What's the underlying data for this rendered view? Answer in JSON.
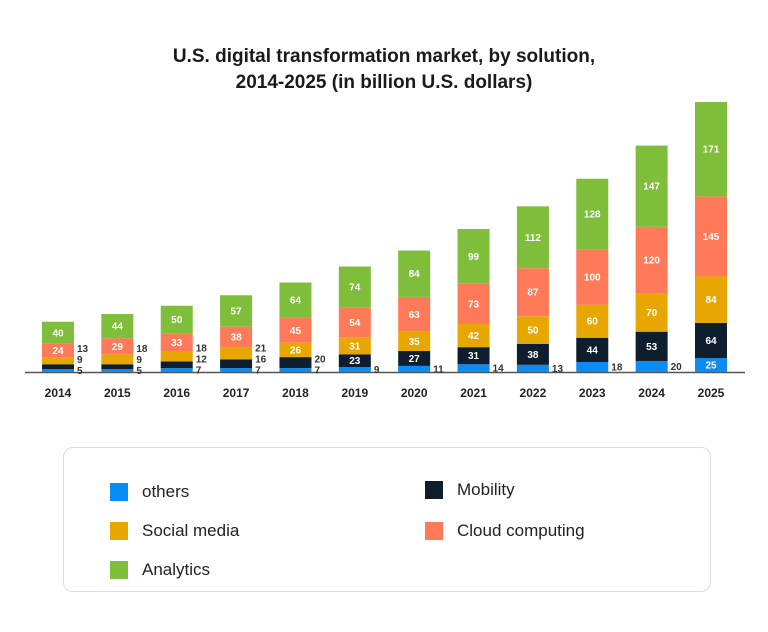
{
  "chart_data": {
    "type": "bar",
    "stacked": true,
    "title": "U.S. digital transformation market, by solution,",
    "title_line2": "2014-2025 (in billion U.S. dollars)",
    "categories": [
      "2014",
      "2015",
      "2016",
      "2017",
      "2018",
      "2019",
      "2020",
      "2021",
      "2022",
      "2023",
      "2024",
      "2025"
    ],
    "series": [
      {
        "name": "others",
        "color": "#0a8cf5",
        "values": [
          5,
          5,
          7,
          7,
          7,
          9,
          11,
          14,
          13,
          18,
          20,
          25
        ]
      },
      {
        "name": "Mobility",
        "color": "#0f1e2e",
        "values": [
          9,
          9,
          12,
          16,
          20,
          23,
          27,
          31,
          38,
          44,
          53,
          64
        ]
      },
      {
        "name": "Social media",
        "color": "#e8a700",
        "values": [
          13,
          18,
          18,
          21,
          26,
          31,
          35,
          42,
          50,
          60,
          70,
          84
        ]
      },
      {
        "name": "Cloud computing",
        "color": "#ff7a59",
        "values": [
          24,
          29,
          33,
          38,
          45,
          54,
          63,
          73,
          87,
          100,
          120,
          145
        ]
      },
      {
        "name": "Analytics",
        "color": "#7fbe3a",
        "values": [
          40,
          44,
          50,
          57,
          64,
          74,
          84,
          99,
          112,
          128,
          147,
          171
        ]
      }
    ],
    "grid": false,
    "legend_position": "bottom"
  }
}
